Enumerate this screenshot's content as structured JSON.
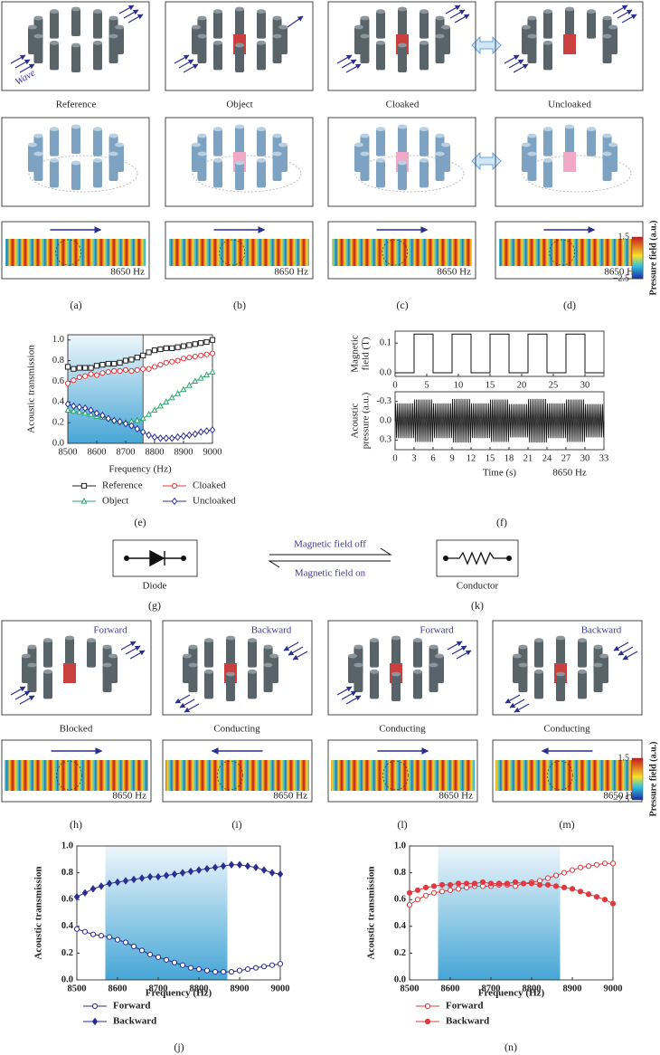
{
  "figure": {
    "top_row": {
      "captions": [
        "Reference",
        "Object",
        "Cloaked",
        "Uncloaked"
      ],
      "wave_label": "Wave",
      "frequency_labels": [
        "8650 Hz",
        "8650 Hz",
        "8650 Hz",
        "8650 Hz"
      ],
      "panel_letters": [
        "(a)",
        "(b)",
        "(c)",
        "(d)"
      ]
    },
    "colorbars": [
      {
        "title": "Pressure field (a.u.)",
        "ticks": [
          1.5,
          {
            "value": -2.5,
            "label": "−2.5"
          }
        ]
      },
      {
        "title": "Pressure field (a.u.)",
        "ticks": [
          1.5,
          {
            "value": -2.5,
            "label": "−2.5"
          }
        ]
      }
    ],
    "circuit": {
      "diode": "Diode",
      "conductor": "Conductor",
      "off": "Magnetic field off",
      "on": "Magnetic field on",
      "letters": [
        "(g)",
        "(k)"
      ]
    },
    "bottom_row": {
      "directions": [
        "Forward",
        "Backward",
        "Forward",
        "Backward"
      ],
      "captions": [
        "Blocked",
        "Conducting",
        "Conducting",
        "Conducting"
      ],
      "frequency_labels": [
        "8650 Hz",
        "8650 Hz",
        "8650 Hz",
        "8650 Hz"
      ],
      "panel_letters": [
        "(h)",
        "(i)",
        "(l)",
        "(m)"
      ]
    }
  },
  "chart_data": [
    {
      "type": "line",
      "panel_label": "(e)",
      "xlabel": "Frequency (Hz)",
      "ylabel": [
        "Acoustic transmission"
      ],
      "x": [
        8500,
        8520,
        8540,
        8560,
        8580,
        8600,
        8620,
        8640,
        8660,
        8680,
        8700,
        8720,
        8740,
        8760,
        8780,
        8800,
        8820,
        8840,
        8860,
        8880,
        8900,
        8920,
        8940,
        8960,
        8980,
        9000
      ],
      "series": [
        {
          "name": "Reference",
          "color": "#222222",
          "marker": "square",
          "filled": false,
          "values": [
            0.74,
            0.72,
            0.73,
            0.73,
            0.73,
            0.75,
            0.76,
            0.77,
            0.77,
            0.78,
            0.8,
            0.81,
            0.83,
            0.85,
            0.88,
            0.9,
            0.91,
            0.92,
            0.92,
            0.93,
            0.94,
            0.95,
            0.96,
            0.97,
            0.98,
            1.0
          ]
        },
        {
          "name": "Cloaked",
          "color": "#e0393e",
          "marker": "circle",
          "filled": false,
          "values": [
            0.58,
            0.61,
            0.64,
            0.65,
            0.67,
            0.66,
            0.68,
            0.69,
            0.7,
            0.7,
            0.71,
            0.7,
            0.71,
            0.72,
            0.72,
            0.74,
            0.76,
            0.78,
            0.79,
            0.8,
            0.82,
            0.83,
            0.84,
            0.85,
            0.86,
            0.87
          ]
        },
        {
          "name": "Object",
          "color": "#2aa76b",
          "marker": "triangle",
          "filled": false,
          "values": [
            0.32,
            0.31,
            0.3,
            0.29,
            0.28,
            0.26,
            0.25,
            0.24,
            0.22,
            0.21,
            0.2,
            0.21,
            0.22,
            0.24,
            0.28,
            0.32,
            0.36,
            0.4,
            0.44,
            0.48,
            0.52,
            0.56,
            0.6,
            0.63,
            0.66,
            0.69
          ]
        },
        {
          "name": "Uncloaked",
          "color": "#2b2f8f",
          "marker": "diamond",
          "filled": false,
          "values": [
            0.38,
            0.36,
            0.35,
            0.34,
            0.32,
            0.29,
            0.27,
            0.24,
            0.22,
            0.21,
            0.19,
            0.17,
            0.14,
            0.11,
            0.08,
            0.06,
            0.05,
            0.05,
            0.05,
            0.06,
            0.07,
            0.08,
            0.09,
            0.11,
            0.12,
            0.13
          ]
        }
      ],
      "legend_order": [
        0,
        1,
        2,
        3
      ],
      "xlim": [
        8500,
        9000
      ],
      "ylim": [
        0,
        1.05
      ],
      "xticks": [
        8500,
        8600,
        8700,
        8800,
        8900,
        9000
      ],
      "yticks": [
        {
          "value": 0,
          "label": "0.0"
        },
        0.2,
        0.4,
        0.6,
        0.8,
        {
          "value": 1,
          "label": "1.0"
        }
      ],
      "shaded_xrange": [
        8500,
        8760
      ],
      "legend_columns": 2
    },
    {
      "type": "trace",
      "ylabel": [
        "Magnetic",
        "field (T)"
      ],
      "color": "#111111",
      "x": [
        0,
        3,
        3,
        6,
        6,
        9,
        9,
        12,
        12,
        15,
        15,
        18,
        18,
        21,
        21,
        24,
        24,
        27,
        27,
        30,
        30,
        33
      ],
      "values": [
        0,
        0,
        0.13,
        0.13,
        0,
        0,
        0.13,
        0.13,
        0,
        0,
        0.13,
        0.13,
        0,
        0,
        0.13,
        0.13,
        0,
        0,
        0.13,
        0.13,
        0,
        0
      ],
      "xlim": [
        0,
        33
      ],
      "ylim": [
        -0.012,
        0.14
      ],
      "xticks": [
        0,
        5,
        10,
        15,
        20,
        25,
        30
      ],
      "yticks": [
        {
          "value": 0,
          "label": "0.0"
        },
        0.1
      ]
    },
    {
      "type": "burst",
      "panel_label": "(f)",
      "ylabel": [
        "Acoustic",
        "pressure (a.u.)"
      ],
      "xlabel": "Time (s)",
      "annotation": "8650 Hz",
      "color": "#111111",
      "segments": [
        0,
        3,
        6,
        9,
        12,
        15,
        18,
        21,
        24,
        27,
        30,
        33
      ],
      "amplitudes": [
        0.27,
        0.33,
        0.27,
        0.34,
        0.27,
        0.33,
        0.26,
        0.34,
        0.27,
        0.33,
        0.26
      ],
      "xlim": [
        0,
        33
      ],
      "ylim": [
        0.45,
        -0.45
      ],
      "xticks": [
        0,
        3,
        6,
        9,
        12,
        15,
        18,
        21,
        24,
        27,
        30,
        33
      ],
      "yticks": [
        -0.3,
        {
          "value": 0,
          "label": "0.0"
        },
        0.3
      ]
    },
    {
      "type": "line",
      "panel_label": "(j)",
      "xlabel": "Frequency (Hz)",
      "ylabel": [
        "Acoustic transmission"
      ],
      "x": [
        8500,
        8520,
        8540,
        8560,
        8580,
        8600,
        8620,
        8640,
        8660,
        8680,
        8700,
        8720,
        8740,
        8760,
        8780,
        8800,
        8820,
        8840,
        8860,
        8880,
        8900,
        8920,
        8940,
        8960,
        8980,
        9000
      ],
      "series": [
        {
          "name": "Forward",
          "color": "#2b2f8f",
          "marker": "circle",
          "filled": false,
          "values": [
            0.38,
            0.36,
            0.34,
            0.33,
            0.32,
            0.3,
            0.28,
            0.25,
            0.22,
            0.19,
            0.17,
            0.15,
            0.13,
            0.11,
            0.09,
            0.08,
            0.07,
            0.06,
            0.06,
            0.06,
            0.07,
            0.08,
            0.09,
            0.1,
            0.11,
            0.12
          ]
        },
        {
          "name": "Backward",
          "color": "#2b2f8f",
          "marker": "diamond",
          "filled": true,
          "values": [
            0.62,
            0.65,
            0.68,
            0.7,
            0.72,
            0.73,
            0.74,
            0.75,
            0.76,
            0.77,
            0.77,
            0.78,
            0.79,
            0.8,
            0.81,
            0.82,
            0.83,
            0.84,
            0.85,
            0.86,
            0.86,
            0.85,
            0.84,
            0.82,
            0.8,
            0.79
          ]
        }
      ],
      "xlim": [
        8500,
        9000
      ],
      "ylim": [
        0,
        1
      ],
      "xticks": [
        8500,
        8600,
        8700,
        8800,
        8900,
        9000
      ],
      "yticks": [
        {
          "value": 0,
          "label": "0.0"
        },
        0.2,
        0.4,
        0.6,
        0.8,
        {
          "value": 1,
          "label": "1.0"
        }
      ],
      "shaded_xrange": [
        8570,
        8870
      ],
      "legend_columns": 1
    },
    {
      "type": "line",
      "panel_label": "(n)",
      "xlabel": "Frequency (Hz)",
      "ylabel": [
        "Acoustic transmission"
      ],
      "x": [
        8500,
        8520,
        8540,
        8560,
        8580,
        8600,
        8620,
        8640,
        8660,
        8680,
        8700,
        8720,
        8740,
        8760,
        8780,
        8800,
        8820,
        8840,
        8860,
        8880,
        8900,
        8920,
        8940,
        8960,
        8980,
        9000
      ],
      "series": [
        {
          "name": "Forward",
          "color": "#e0393e",
          "marker": "circle",
          "filled": false,
          "values": [
            0.56,
            0.6,
            0.63,
            0.65,
            0.66,
            0.67,
            0.68,
            0.69,
            0.7,
            0.7,
            0.7,
            0.71,
            0.71,
            0.7,
            0.72,
            0.73,
            0.74,
            0.76,
            0.78,
            0.8,
            0.82,
            0.84,
            0.85,
            0.86,
            0.87,
            0.87
          ]
        },
        {
          "name": "Backward",
          "color": "#e0393e",
          "marker": "circle",
          "filled": true,
          "values": [
            0.65,
            0.67,
            0.69,
            0.7,
            0.71,
            0.71,
            0.72,
            0.72,
            0.72,
            0.73,
            0.72,
            0.72,
            0.72,
            0.73,
            0.72,
            0.72,
            0.71,
            0.71,
            0.7,
            0.69,
            0.68,
            0.66,
            0.64,
            0.62,
            0.6,
            0.57
          ]
        }
      ],
      "xlim": [
        8500,
        9000
      ],
      "ylim": [
        0,
        1
      ],
      "xticks": [
        8500,
        8600,
        8700,
        8800,
        8900,
        9000
      ],
      "yticks": [
        {
          "value": 0,
          "label": "0.0"
        },
        0.2,
        0.4,
        0.6,
        0.8,
        {
          "value": 1,
          "label": "1.0"
        }
      ],
      "shaded_xrange": [
        8570,
        8870
      ],
      "legend_columns": 1
    }
  ]
}
